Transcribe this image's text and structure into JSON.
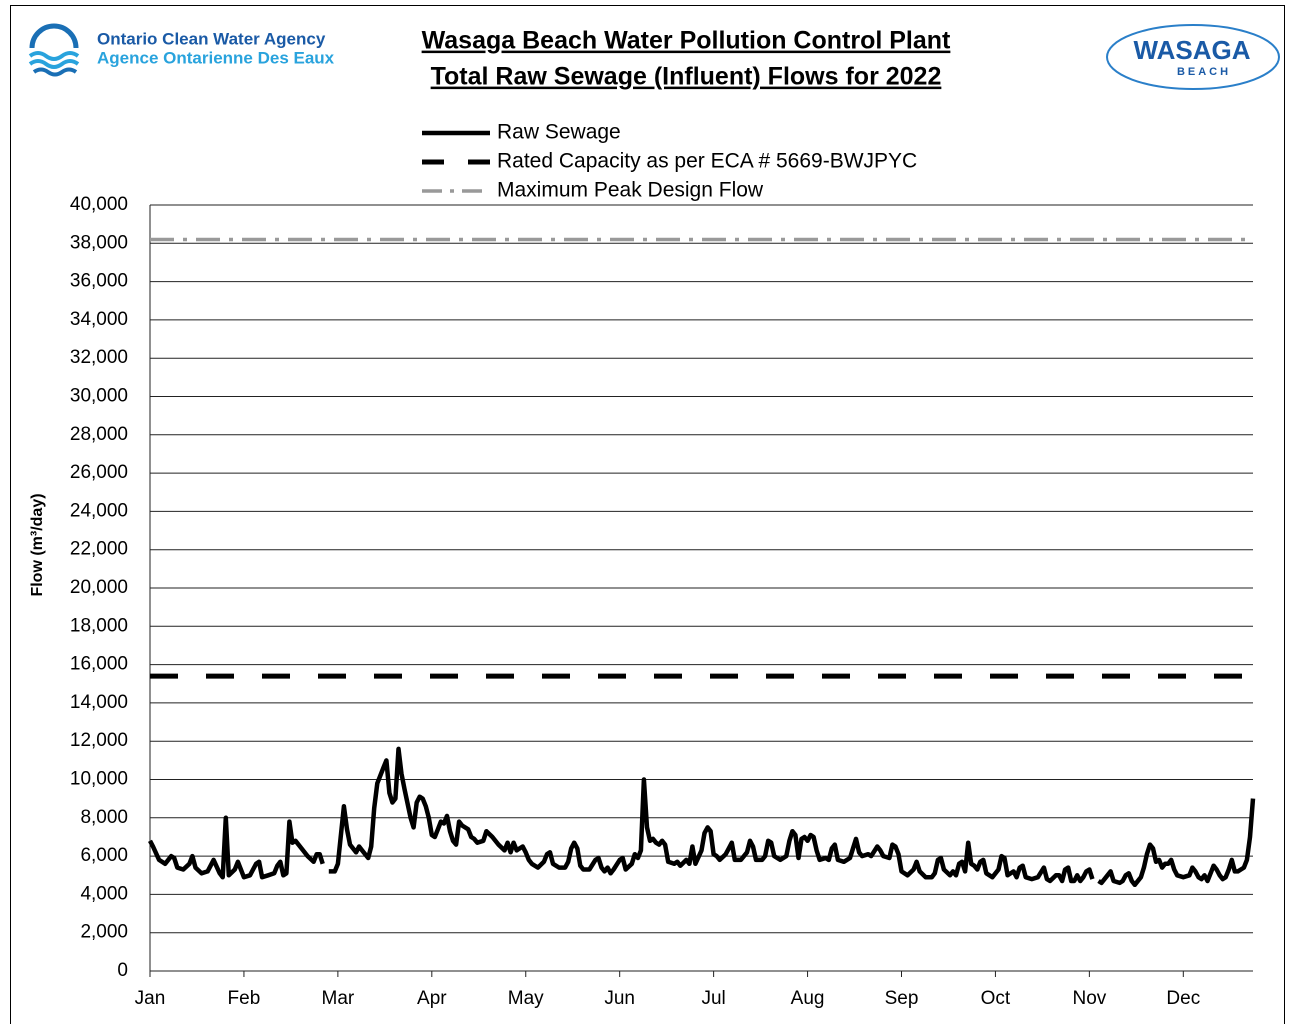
{
  "header": {
    "agency": [
      "Ontario Clean Water Agency",
      "Agence Ontarienne Des Eaux"
    ],
    "logo": [
      "WASAGA",
      "BEACH"
    ]
  },
  "chart_data": {
    "type": "line",
    "title": [
      "Wasaga Beach Water Pollution Control Plant",
      "Total Raw Sewage (Influent) Flows for 2022"
    ],
    "ylabel": "Flow (m³/day)",
    "xlim": [
      0,
      364
    ],
    "xticks": [
      {
        "value": 0,
        "label": "Jan"
      },
      {
        "value": 31,
        "label": "Feb"
      },
      {
        "value": 62,
        "label": "Mar"
      },
      {
        "value": 93,
        "label": "Apr"
      },
      {
        "value": 124,
        "label": "May"
      },
      {
        "value": 155,
        "label": "Jun"
      },
      {
        "value": 186,
        "label": "Jul"
      },
      {
        "value": 217,
        "label": "Aug"
      },
      {
        "value": 248,
        "label": "Sep"
      },
      {
        "value": 279,
        "label": "Oct"
      },
      {
        "value": 310,
        "label": "Nov"
      },
      {
        "value": 341,
        "label": "Dec"
      }
    ],
    "ylim": [
      0,
      40000
    ],
    "yticks": [
      0,
      {
        "value": 2000,
        "label": "2,000"
      },
      {
        "value": 4000,
        "label": "4,000"
      },
      {
        "value": 6000,
        "label": "6,000"
      },
      {
        "value": 8000,
        "label": "8,000"
      },
      {
        "value": 10000,
        "label": "10,000"
      },
      {
        "value": 12000,
        "label": "12,000"
      },
      {
        "value": 14000,
        "label": "14,000"
      },
      {
        "value": 16000,
        "label": "16,000"
      },
      {
        "value": 18000,
        "label": "18,000"
      },
      {
        "value": 20000,
        "label": "20,000"
      },
      {
        "value": 22000,
        "label": "22,000"
      },
      {
        "value": 24000,
        "label": "24,000"
      },
      {
        "value": 26000,
        "label": "26,000"
      },
      {
        "value": 28000,
        "label": "28,000"
      },
      {
        "value": 30000,
        "label": "30,000"
      },
      {
        "value": 32000,
        "label": "32,000"
      },
      {
        "value": 34000,
        "label": "34,000"
      },
      {
        "value": 36000,
        "label": "36,000"
      },
      {
        "value": 38000,
        "label": "38,000"
      },
      {
        "value": 40000,
        "label": "40,000"
      }
    ],
    "grid": true,
    "series": [
      {
        "name": "Raw Sewage",
        "color": "#000000",
        "style": "solid",
        "x": [
          0,
          1,
          3,
          5,
          7,
          8,
          9,
          11,
          13,
          14,
          15,
          17,
          19,
          21,
          23,
          24,
          25,
          26,
          28,
          29,
          31,
          33,
          35,
          36,
          37,
          39,
          41,
          42,
          43,
          44,
          45,
          46,
          47,
          48,
          50,
          52,
          54,
          55,
          56,
          57,
          58,
          59,
          61,
          62,
          64,
          65,
          66,
          68,
          69,
          70,
          72,
          73,
          74,
          75,
          77,
          78,
          79,
          80,
          81,
          82,
          83,
          84,
          86,
          87,
          88,
          89,
          90,
          91,
          92,
          93,
          94,
          95,
          96,
          97,
          98,
          99,
          100,
          101,
          102,
          103,
          105,
          106,
          107,
          108,
          110,
          111,
          113,
          115,
          117,
          118,
          119,
          120,
          121,
          122,
          123,
          124,
          125,
          126,
          128,
          130,
          131,
          132,
          133,
          135,
          137,
          138,
          139,
          140,
          141,
          142,
          143,
          145,
          147,
          148,
          149,
          150,
          151,
          152,
          153,
          155,
          156,
          157,
          159,
          160,
          161,
          162,
          163,
          164,
          165,
          166,
          167,
          168,
          169,
          170,
          171,
          173,
          174,
          175,
          177,
          178,
          179,
          180,
          182,
          183,
          184,
          185,
          186,
          187,
          188,
          190,
          191,
          192,
          193,
          195,
          197,
          198,
          199,
          200,
          202,
          203,
          204,
          205,
          206,
          208,
          210,
          211,
          212,
          213,
          214,
          215,
          216,
          217,
          218,
          219,
          220,
          221,
          223,
          224,
          225,
          226,
          227,
          229,
          231,
          232,
          233,
          234,
          235,
          237,
          238,
          240,
          241,
          242,
          244,
          245,
          246,
          247,
          248,
          250,
          252,
          253,
          254,
          256,
          258,
          259,
          260,
          261,
          262,
          264,
          265,
          266,
          267,
          268,
          269,
          270,
          271,
          272,
          273,
          274,
          275,
          276,
          278,
          280,
          281,
          282,
          283,
          285,
          286,
          287,
          288,
          289,
          291,
          293,
          295,
          296,
          297,
          299,
          300,
          301,
          302,
          303,
          304,
          305,
          306,
          307,
          308,
          309,
          310,
          311,
          312,
          313,
          314,
          316,
          317,
          318,
          320,
          321,
          322,
          323,
          324,
          325,
          327,
          328,
          329,
          330,
          331,
          332,
          333,
          334,
          335,
          336,
          337,
          338,
          339,
          341,
          343,
          344,
          345,
          346,
          347,
          348,
          349,
          350,
          351,
          352,
          353,
          354,
          355,
          356,
          357,
          358,
          359,
          360,
          361,
          362,
          363,
          364
        ],
        "values": [
          6800,
          6500,
          5800,
          5600,
          6000,
          5900,
          5400,
          5300,
          5600,
          6000,
          5400,
          5100,
          5200,
          5800,
          5100,
          4900,
          8000,
          5000,
          5300,
          5700,
          4900,
          5000,
          5600,
          5700,
          4900,
          5000,
          5100,
          5500,
          5700,
          5000,
          5100,
          7800,
          6700,
          6800,
          6400,
          6000,
          5700,
          6100,
          6100,
          5600,
          null,
          5200,
          5200,
          5600,
          8600,
          7400,
          6600,
          6200,
          6500,
          6300,
          5900,
          6500,
          8500,
          9800,
          10600,
          11000,
          9300,
          8800,
          9000,
          11600,
          10300,
          9500,
          8000,
          7500,
          8800,
          9100,
          9000,
          8600,
          8000,
          7100,
          7000,
          7400,
          7800,
          7700,
          8100,
          7300,
          6800,
          6600,
          7800,
          7600,
          7400,
          7000,
          6900,
          6700,
          6800,
          7300,
          7000,
          6600,
          6300,
          6700,
          6200,
          6700,
          6300,
          6400,
          6500,
          6200,
          5800,
          5600,
          5400,
          5700,
          6100,
          6200,
          5600,
          5400,
          5400,
          5700,
          6400,
          6700,
          6400,
          5500,
          5300,
          5300,
          5800,
          5900,
          5400,
          5200,
          5400,
          5100,
          5300,
          5800,
          5900,
          5300,
          5600,
          6100,
          5900,
          6300,
          10000,
          7500,
          6800,
          6900,
          6700,
          6600,
          6800,
          6600,
          5700,
          5600,
          5700,
          5500,
          5800,
          5600,
          6500,
          5600,
          6300,
          7200,
          7500,
          7300,
          6100,
          6000,
          5800,
          6100,
          6400,
          6700,
          5800,
          5800,
          6200,
          6800,
          6500,
          5800,
          5800,
          6000,
          6800,
          6700,
          6000,
          5800,
          6000,
          6800,
          7300,
          7100,
          5900,
          6900,
          7000,
          6800,
          7100,
          7000,
          6300,
          5800,
          5900,
          5800,
          6400,
          6600,
          5800,
          5700,
          5900,
          6400,
          6900,
          6200,
          6000,
          6100,
          6000,
          6500,
          6300,
          6000,
          5900,
          6600,
          6500,
          6100,
          5200,
          5000,
          5300,
          5700,
          5200,
          4900,
          4900,
          5100,
          5800,
          5900,
          5300,
          5000,
          5200,
          5000,
          5600,
          5700,
          5200,
          6700,
          5600,
          5500,
          5300,
          5700,
          5800,
          5100,
          4900,
          5300,
          6000,
          5900,
          5000,
          5200,
          4900,
          5400,
          5500,
          4900,
          4800,
          4900,
          5400,
          4800,
          4700,
          5000,
          5000,
          4700,
          5300,
          5400,
          4700,
          4700,
          5000,
          4700,
          4900,
          5200,
          5300,
          4800,
          null,
          4700,
          4600,
          5000,
          5200,
          4700,
          4600,
          4700,
          5000,
          5100,
          4700,
          4500,
          4900,
          5400,
          6100,
          6600,
          6400,
          5700,
          5800,
          5400,
          5600,
          5600,
          5800,
          5300,
          5000,
          4900,
          5000,
          5400,
          5200,
          4900,
          4800,
          5000,
          4700,
          5100,
          5500,
          5300,
          5000,
          4800,
          4900,
          5300,
          5800,
          5200,
          5200,
          5300,
          5400,
          5800,
          7000,
          9000
        ]
      },
      {
        "name": "Rated Capacity as per ECA # 5669-BWJPYC",
        "color": "#000000",
        "style": "dash",
        "x": [
          0,
          364
        ],
        "values": [
          15400,
          15400
        ]
      },
      {
        "name": "Maximum Peak Design Flow",
        "color": "#999999",
        "style": "dashdot",
        "x": [
          0,
          364
        ],
        "values": [
          38200,
          38200
        ]
      }
    ]
  }
}
